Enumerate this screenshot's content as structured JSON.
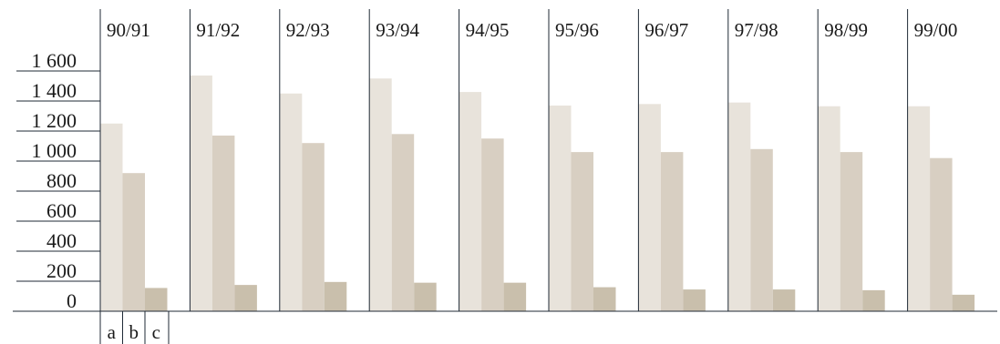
{
  "chart_data": {
    "type": "bar",
    "categories": [
      "90/91",
      "91/92",
      "92/93",
      "93/94",
      "94/95",
      "95/96",
      "96/97",
      "97/98",
      "98/99",
      "99/00"
    ],
    "series": [
      {
        "name": "a",
        "values": [
          1250,
          1570,
          1450,
          1550,
          1460,
          1370,
          1380,
          1390,
          1365,
          1365
        ],
        "color": "#e8e3db"
      },
      {
        "name": "b",
        "values": [
          920,
          1170,
          1120,
          1180,
          1150,
          1060,
          1060,
          1080,
          1060,
          1020
        ],
        "color": "#d8cfc2"
      },
      {
        "name": "c",
        "values": [
          155,
          175,
          195,
          190,
          190,
          160,
          145,
          145,
          140,
          110
        ],
        "color": "#c9bfac"
      }
    ],
    "y_ticks": [
      "0",
      "200",
      "400",
      "600",
      "800",
      "1 000",
      "1 200",
      "1 400",
      "1 600"
    ],
    "ylim": [
      0,
      1600
    ],
    "legend_labels": [
      "a",
      "b",
      "c"
    ],
    "title": "",
    "xlabel": "",
    "ylabel": ""
  }
}
